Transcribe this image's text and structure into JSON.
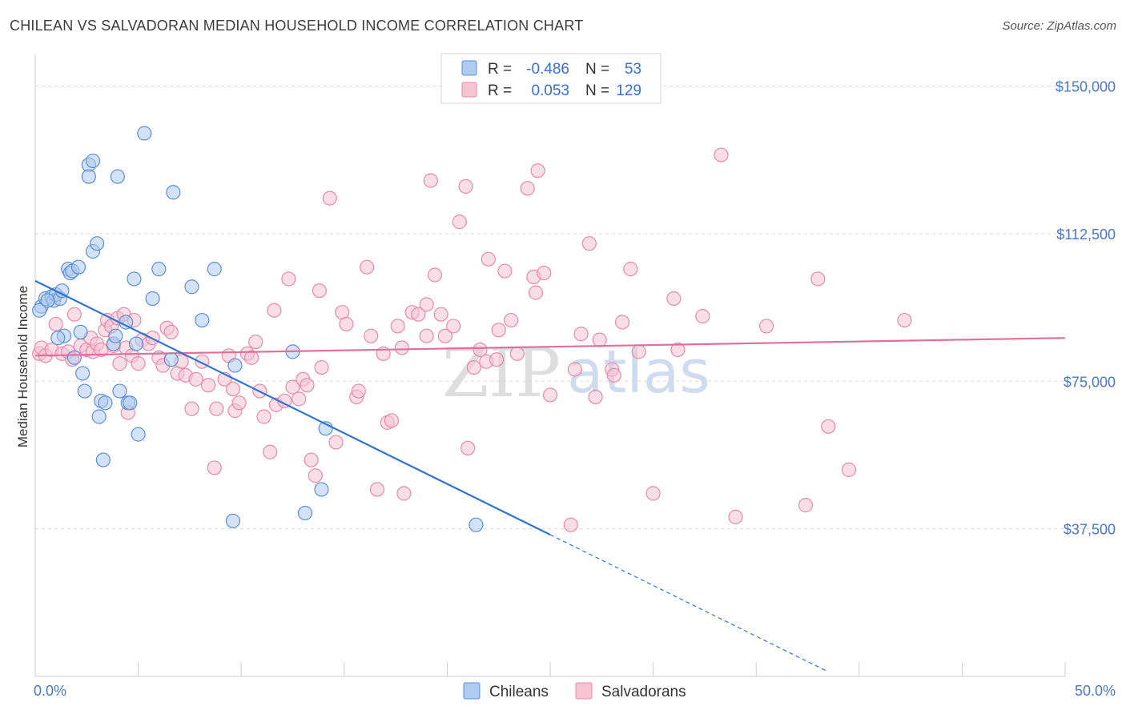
{
  "header": {
    "title": "CHILEAN VS SALVADORAN MEDIAN HOUSEHOLD INCOME CORRELATION CHART",
    "source": "Source: ZipAtlas.com"
  },
  "watermark": {
    "zip": "ZIP",
    "atlas": "atlas"
  },
  "colors": {
    "chileans_fill": "#aecbf0",
    "chileans_stroke": "#5b8fd6",
    "chileans_line": "#2f74d0",
    "salvadorans_fill": "#f6c3d3",
    "salvadorans_stroke": "#e58aa8",
    "salvadorans_line": "#e0709a",
    "grid": "#d8d8d8",
    "tick_label": "#4a78c9"
  },
  "legend": {
    "rows": [
      {
        "r_label": "R =",
        "r_value": "-0.486",
        "n_label": "N =",
        "n_value": "53"
      },
      {
        "r_label": "R =",
        "r_value": "0.053",
        "n_label": "N =",
        "n_value": "129"
      }
    ]
  },
  "chart_data": {
    "type": "scatter",
    "title": "CHILEAN VS SALVADORAN MEDIAN HOUSEHOLD INCOME CORRELATION CHART",
    "ylabel": "Median Household Income",
    "xlabel": "",
    "xlim": [
      0,
      50
    ],
    "ylim": [
      0,
      156000
    ],
    "x_tick_labels": [
      "0.0%",
      "50.0%"
    ],
    "y_ticks": [
      37500,
      75000,
      112500,
      150000
    ],
    "y_tick_labels": [
      "$37,500",
      "$75,000",
      "$112,500",
      "$150,000"
    ],
    "grid": true,
    "legend_position": "bottom",
    "series": [
      {
        "name": "Chileans",
        "trend": {
          "x0": 0,
          "y0": 100500,
          "x1": 25,
          "y1": 36000,
          "dashed_to_x": 38.5
        },
        "points": [
          [
            0.3,
            94000
          ],
          [
            0.5,
            96000
          ],
          [
            0.8,
            96500
          ],
          [
            0.9,
            95500
          ],
          [
            1.0,
            97000
          ],
          [
            1.2,
            96000
          ],
          [
            1.3,
            98000
          ],
          [
            1.4,
            86500
          ],
          [
            1.6,
            103500
          ],
          [
            1.7,
            102500
          ],
          [
            1.8,
            103000
          ],
          [
            1.9,
            81000
          ],
          [
            2.1,
            104000
          ],
          [
            2.2,
            87500
          ],
          [
            2.3,
            77000
          ],
          [
            2.4,
            72500
          ],
          [
            2.6,
            130000
          ],
          [
            2.6,
            127000
          ],
          [
            2.8,
            108000
          ],
          [
            2.8,
            131000
          ],
          [
            3.0,
            110000
          ],
          [
            3.1,
            66000
          ],
          [
            3.2,
            70000
          ],
          [
            3.3,
            55000
          ],
          [
            3.4,
            69500
          ],
          [
            3.8,
            84500
          ],
          [
            3.9,
            86500
          ],
          [
            4.0,
            127000
          ],
          [
            4.1,
            72500
          ],
          [
            4.4,
            90000
          ],
          [
            4.5,
            69500
          ],
          [
            4.6,
            69500
          ],
          [
            4.8,
            101000
          ],
          [
            4.9,
            84500
          ],
          [
            5.0,
            61500
          ],
          [
            5.3,
            138000
          ],
          [
            5.7,
            96000
          ],
          [
            6.0,
            103500
          ],
          [
            6.7,
            123000
          ],
          [
            6.6,
            80500
          ],
          [
            7.6,
            99000
          ],
          [
            8.1,
            90500
          ],
          [
            8.7,
            103500
          ],
          [
            9.6,
            39500
          ],
          [
            9.7,
            79000
          ],
          [
            12.5,
            82500
          ],
          [
            13.1,
            41500
          ],
          [
            13.9,
            47500
          ],
          [
            14.1,
            63000
          ],
          [
            21.4,
            38500
          ],
          [
            0.2,
            93000
          ],
          [
            1.1,
            86000
          ],
          [
            0.6,
            95500
          ]
        ]
      },
      {
        "name": "Salvadorans",
        "trend": {
          "x0": 0,
          "y0": 81500,
          "x1": 50,
          "y1": 86000
        },
        "points": [
          [
            0.2,
            82000
          ],
          [
            0.3,
            83500
          ],
          [
            0.5,
            81500
          ],
          [
            0.8,
            83000
          ],
          [
            1.0,
            89500
          ],
          [
            1.3,
            82000
          ],
          [
            1.6,
            82500
          ],
          [
            1.8,
            80500
          ],
          [
            1.9,
            92000
          ],
          [
            2.2,
            84000
          ],
          [
            2.5,
            83000
          ],
          [
            2.7,
            86000
          ],
          [
            2.8,
            82500
          ],
          [
            3.0,
            84500
          ],
          [
            3.2,
            83000
          ],
          [
            3.4,
            88000
          ],
          [
            3.5,
            90500
          ],
          [
            3.7,
            89000
          ],
          [
            3.8,
            84000
          ],
          [
            4.0,
            91000
          ],
          [
            4.1,
            79500
          ],
          [
            4.3,
            92000
          ],
          [
            4.4,
            83500
          ],
          [
            4.5,
            67000
          ],
          [
            4.7,
            81500
          ],
          [
            4.8,
            90500
          ],
          [
            5.0,
            79500
          ],
          [
            5.2,
            85500
          ],
          [
            5.5,
            84500
          ],
          [
            5.7,
            86000
          ],
          [
            6.0,
            81000
          ],
          [
            6.2,
            79000
          ],
          [
            6.4,
            88500
          ],
          [
            6.6,
            87500
          ],
          [
            6.9,
            77000
          ],
          [
            7.1,
            80000
          ],
          [
            7.3,
            76500
          ],
          [
            7.6,
            68000
          ],
          [
            7.8,
            75500
          ],
          [
            8.1,
            80000
          ],
          [
            8.4,
            74000
          ],
          [
            8.7,
            53000
          ],
          [
            8.8,
            68000
          ],
          [
            9.2,
            75500
          ],
          [
            9.4,
            81500
          ],
          [
            9.6,
            73000
          ],
          [
            9.7,
            67500
          ],
          [
            9.9,
            69500
          ],
          [
            10.3,
            82000
          ],
          [
            10.5,
            81000
          ],
          [
            10.7,
            85000
          ],
          [
            10.9,
            72500
          ],
          [
            11.1,
            66000
          ],
          [
            11.4,
            57000
          ],
          [
            11.6,
            93000
          ],
          [
            11.7,
            69000
          ],
          [
            12.1,
            70000
          ],
          [
            12.3,
            101000
          ],
          [
            12.5,
            73500
          ],
          [
            12.8,
            70500
          ],
          [
            13.0,
            75500
          ],
          [
            13.2,
            74000
          ],
          [
            13.4,
            55000
          ],
          [
            13.6,
            51000
          ],
          [
            13.8,
            98000
          ],
          [
            13.9,
            78500
          ],
          [
            14.3,
            121500
          ],
          [
            14.6,
            59500
          ],
          [
            14.9,
            92500
          ],
          [
            15.1,
            89500
          ],
          [
            15.6,
            71000
          ],
          [
            15.7,
            72500
          ],
          [
            16.1,
            104000
          ],
          [
            16.3,
            86500
          ],
          [
            16.6,
            47500
          ],
          [
            16.9,
            82000
          ],
          [
            17.1,
            64500
          ],
          [
            17.3,
            65000
          ],
          [
            17.6,
            89000
          ],
          [
            17.8,
            83500
          ],
          [
            17.9,
            46500
          ],
          [
            18.3,
            92500
          ],
          [
            18.6,
            92000
          ],
          [
            19.0,
            94500
          ],
          [
            19.0,
            86500
          ],
          [
            19.2,
            126000
          ],
          [
            19.4,
            102000
          ],
          [
            19.7,
            92000
          ],
          [
            19.9,
            86500
          ],
          [
            20.3,
            89000
          ],
          [
            20.6,
            115500
          ],
          [
            20.9,
            124500
          ],
          [
            21.0,
            58000
          ],
          [
            21.3,
            78500
          ],
          [
            21.6,
            83000
          ],
          [
            21.9,
            80000
          ],
          [
            22.0,
            106000
          ],
          [
            22.4,
            80500
          ],
          [
            22.5,
            88000
          ],
          [
            22.8,
            103000
          ],
          [
            23.1,
            90500
          ],
          [
            23.4,
            82000
          ],
          [
            23.9,
            124000
          ],
          [
            24.2,
            101500
          ],
          [
            24.3,
            97500
          ],
          [
            24.4,
            128500
          ],
          [
            24.7,
            102500
          ],
          [
            25.0,
            71500
          ],
          [
            26.0,
            38500
          ],
          [
            26.2,
            78000
          ],
          [
            26.5,
            87000
          ],
          [
            26.9,
            110000
          ],
          [
            27.2,
            71000
          ],
          [
            27.4,
            85500
          ],
          [
            28.0,
            78000
          ],
          [
            28.1,
            76500
          ],
          [
            28.5,
            90000
          ],
          [
            28.9,
            103500
          ],
          [
            29.3,
            82500
          ],
          [
            30.0,
            46500
          ],
          [
            31.0,
            96000
          ],
          [
            31.2,
            83000
          ],
          [
            32.4,
            91500
          ],
          [
            33.3,
            132500
          ],
          [
            34.0,
            40500
          ],
          [
            35.5,
            89000
          ],
          [
            37.4,
            43500
          ],
          [
            38.0,
            101000
          ],
          [
            38.5,
            63500
          ],
          [
            39.5,
            52500
          ],
          [
            42.2,
            90500
          ]
        ]
      }
    ]
  }
}
